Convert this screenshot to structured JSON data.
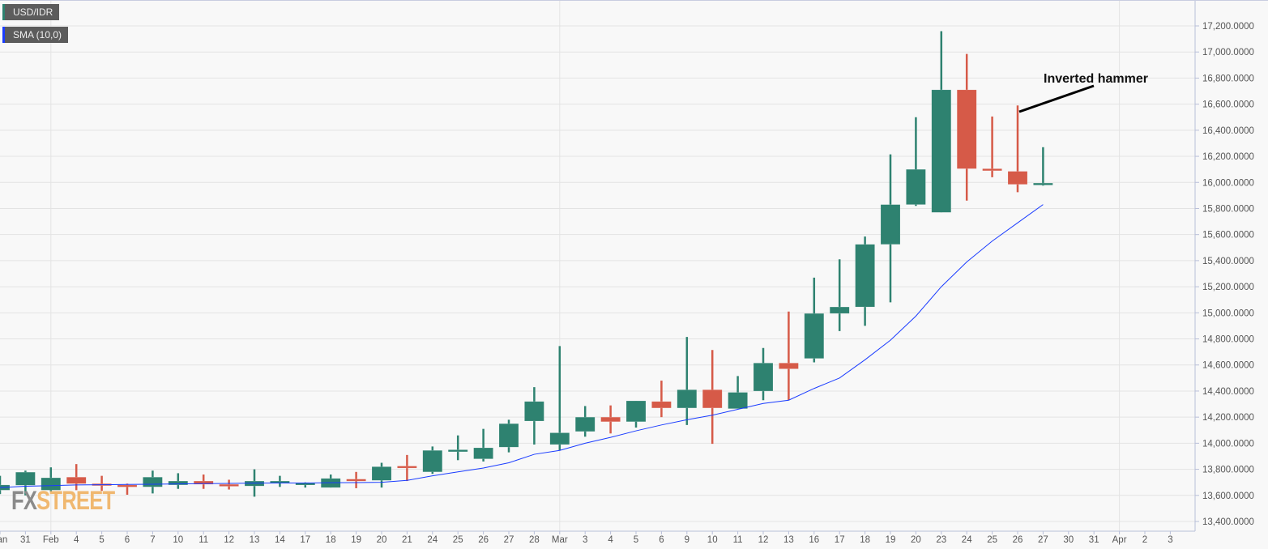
{
  "legend": {
    "symbol": "USD/IDR",
    "indicator": "SMA (10,0)"
  },
  "watermark": {
    "part1": "FX",
    "part2": "STREET"
  },
  "colors": {
    "up": "#2e8270",
    "down": "#d65a48",
    "sma": "#1a3cff",
    "grid": "#e3e3e3"
  },
  "chart_data": {
    "type": "candlestick",
    "title": "",
    "ylim": [
      13400,
      17200
    ],
    "y_ticks": [
      "13,400.0000",
      "13,600.0000",
      "13,800.0000",
      "14,000.0000",
      "14,200.0000",
      "14,400.0000",
      "14,600.0000",
      "14,800.0000",
      "15,000.0000",
      "15,200.0000",
      "15,400.0000",
      "15,600.0000",
      "15,800.0000",
      "16,000.0000",
      "16,200.0000",
      "16,400.0000",
      "16,600.0000",
      "16,800.0000",
      "17,000.0000",
      "17,200.0000"
    ],
    "x_ticks": [
      "Jan",
      "31",
      "Feb",
      "4",
      "5",
      "6",
      "7",
      "10",
      "11",
      "12",
      "13",
      "14",
      "17",
      "18",
      "19",
      "20",
      "21",
      "24",
      "25",
      "26",
      "27",
      "28",
      "Mar",
      "3",
      "4",
      "5",
      "6",
      "9",
      "10",
      "11",
      "12",
      "13",
      "16",
      "17",
      "18",
      "19",
      "20",
      "23",
      "24",
      "25",
      "26",
      "27",
      "30",
      "31",
      "Apr",
      "2",
      "3"
    ],
    "grid": true,
    "candles": [
      {
        "o": 13640,
        "h": 13750,
        "l": 13610,
        "c": 13680
      },
      {
        "o": 13678,
        "h": 13790,
        "l": 13600,
        "c": 13778
      },
      {
        "o": 13640,
        "h": 13815,
        "l": 13630,
        "c": 13735
      },
      {
        "o": 13740,
        "h": 13840,
        "l": 13640,
        "c": 13690
      },
      {
        "o": 13690,
        "h": 13750,
        "l": 13635,
        "c": 13678
      },
      {
        "o": 13680,
        "h": 13690,
        "l": 13605,
        "c": 13665
      },
      {
        "o": 13665,
        "h": 13790,
        "l": 13615,
        "c": 13740
      },
      {
        "o": 13680,
        "h": 13770,
        "l": 13650,
        "c": 13710
      },
      {
        "o": 13710,
        "h": 13760,
        "l": 13650,
        "c": 13685
      },
      {
        "o": 13685,
        "h": 13720,
        "l": 13645,
        "c": 13675
      },
      {
        "o": 13672,
        "h": 13800,
        "l": 13590,
        "c": 13710
      },
      {
        "o": 13703,
        "h": 13750,
        "l": 13665,
        "c": 13710
      },
      {
        "o": 13690,
        "h": 13700,
        "l": 13660,
        "c": 13695
      },
      {
        "o": 13660,
        "h": 13760,
        "l": 13660,
        "c": 13730
      },
      {
        "o": 13725,
        "h": 13780,
        "l": 13655,
        "c": 13715
      },
      {
        "o": 13715,
        "h": 13850,
        "l": 13660,
        "c": 13820
      },
      {
        "o": 13825,
        "h": 13910,
        "l": 13710,
        "c": 13820
      },
      {
        "o": 13780,
        "h": 13975,
        "l": 13765,
        "c": 13945
      },
      {
        "o": 13945,
        "h": 14060,
        "l": 13870,
        "c": 13950
      },
      {
        "o": 13880,
        "h": 14110,
        "l": 13860,
        "c": 13965
      },
      {
        "o": 13970,
        "h": 14180,
        "l": 13930,
        "c": 14150
      },
      {
        "o": 14170,
        "h": 14430,
        "l": 13990,
        "c": 14320
      },
      {
        "o": 13990,
        "h": 14745,
        "l": 13945,
        "c": 14080
      },
      {
        "o": 14090,
        "h": 14285,
        "l": 14050,
        "c": 14200
      },
      {
        "o": 14200,
        "h": 14290,
        "l": 14075,
        "c": 14165
      },
      {
        "o": 14165,
        "h": 14325,
        "l": 14120,
        "c": 14325
      },
      {
        "o": 14320,
        "h": 14480,
        "l": 14200,
        "c": 14270
      },
      {
        "o": 14270,
        "h": 14815,
        "l": 14140,
        "c": 14410
      },
      {
        "o": 14410,
        "h": 14715,
        "l": 13995,
        "c": 14270
      },
      {
        "o": 14265,
        "h": 14515,
        "l": 14265,
        "c": 14390
      },
      {
        "o": 14400,
        "h": 14730,
        "l": 14330,
        "c": 14615
      },
      {
        "o": 14615,
        "h": 15010,
        "l": 14330,
        "c": 14570
      },
      {
        "o": 14650,
        "h": 15270,
        "l": 14620,
        "c": 14995
      },
      {
        "o": 14995,
        "h": 15410,
        "l": 14860,
        "c": 15045
      },
      {
        "o": 15045,
        "h": 15585,
        "l": 14900,
        "c": 15525
      },
      {
        "o": 15525,
        "h": 16215,
        "l": 15080,
        "c": 15830
      },
      {
        "o": 15830,
        "h": 16500,
        "l": 15820,
        "c": 16100
      },
      {
        "o": 15770,
        "h": 17160,
        "l": 15770,
        "c": 16710
      },
      {
        "o": 16710,
        "h": 16985,
        "l": 15860,
        "c": 16105
      },
      {
        "o": 16105,
        "h": 16505,
        "l": 16040,
        "c": 16090
      },
      {
        "o": 16085,
        "h": 16590,
        "l": 15925,
        "c": 15985
      },
      {
        "o": 15985,
        "h": 16270,
        "l": 15975,
        "c": 15995
      }
    ],
    "sma": {
      "name": "SMA (10,0)",
      "values": [
        13660,
        13670,
        13675,
        13680,
        13682,
        13684,
        13686,
        13688,
        13690,
        13692,
        13694,
        13695,
        13695,
        13697,
        13698,
        13700,
        13715,
        13750,
        13780,
        13810,
        13850,
        13915,
        13945,
        14000,
        14045,
        14095,
        14140,
        14180,
        14215,
        14260,
        14305,
        14330,
        14420,
        14500,
        14640,
        14790,
        14975,
        15200,
        15390,
        15550,
        15690,
        15830
      ]
    },
    "annotations": [
      {
        "text": "Inverted hammer",
        "target_index": 40
      }
    ]
  }
}
